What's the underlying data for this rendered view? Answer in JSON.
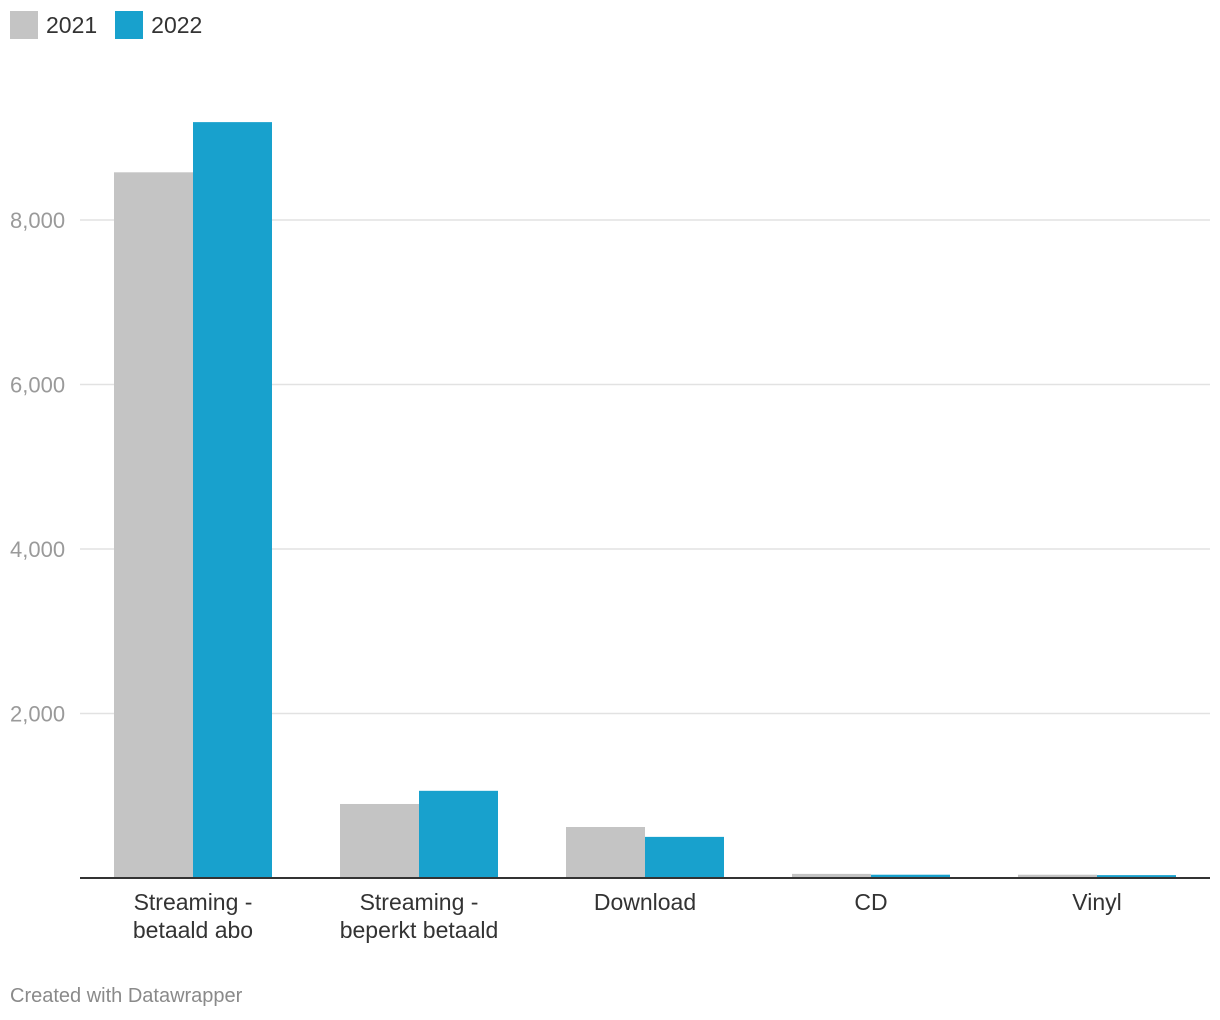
{
  "legend": [
    {
      "label": "2021",
      "color": "#c4c4c4"
    },
    {
      "label": "2022",
      "color": "#18a1cd"
    }
  ],
  "chart_data": {
    "type": "bar",
    "categories": [
      [
        "Streaming -",
        "betaald abo"
      ],
      [
        "Streaming -",
        "beperkt betaald"
      ],
      [
        "Download"
      ],
      [
        "CD"
      ],
      [
        "Vinyl"
      ]
    ],
    "series": [
      {
        "name": "2021",
        "color": "#c4c4c4",
        "values": [
          8580,
          900,
          620,
          50,
          40
        ]
      },
      {
        "name": "2022",
        "color": "#18a1cd",
        "values": [
          9190,
          1060,
          500,
          40,
          35
        ]
      }
    ],
    "yticks": [
      {
        "value": 2000,
        "label": "2,000"
      },
      {
        "value": 4000,
        "label": "4,000"
      },
      {
        "value": 6000,
        "label": "6,000"
      },
      {
        "value": 8000,
        "label": "8,000"
      }
    ],
    "ylim": [
      0,
      10000
    ],
    "grid": true,
    "legend_position": "top-left",
    "title": "",
    "xlabel": "",
    "ylabel": ""
  },
  "footer": {
    "credit": "Created with Datawrapper"
  }
}
